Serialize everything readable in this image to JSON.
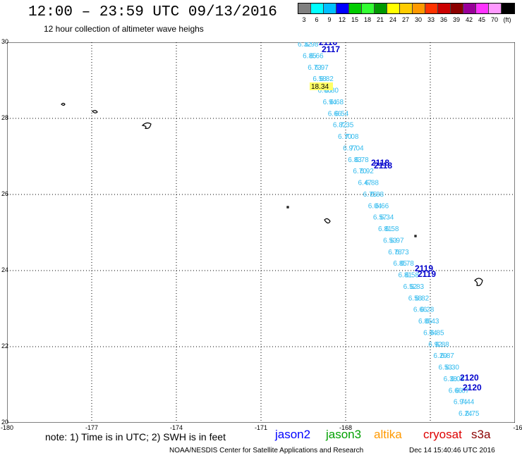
{
  "header": {
    "title": "12:00 – 23:59 UTC 09/13/2016",
    "subtitle": "12 hour collection of altimeter wave heighs"
  },
  "legend": {
    "colors": [
      "#808080",
      "#00ffff",
      "#00bfff",
      "#0000ff",
      "#00cc00",
      "#33ff33",
      "#009900",
      "#ffff00",
      "#ffcc00",
      "#ff9900",
      "#ff3300",
      "#cc0000",
      "#8b0000",
      "#990099",
      "#ff33ff",
      "#ff99ff",
      "#000000"
    ],
    "labels": [
      "3",
      "6",
      "9",
      "12",
      "15",
      "18",
      "21",
      "24",
      "27",
      "30",
      "33",
      "36",
      "39",
      "42",
      "45",
      "70",
      "(ft)"
    ]
  },
  "map": {
    "lat_ticks": [
      "30",
      "28",
      "26",
      "24",
      "22",
      "20"
    ],
    "lon_ticks": [
      "-180",
      "-177",
      "-174",
      "-171",
      "-168",
      "-16"
    ],
    "track_color": "#33bbee",
    "pass_labels": [
      "2116",
      "2117",
      "2118",
      "2118",
      "2119",
      "2119",
      "2120",
      "2120"
    ],
    "highlight_value": "18.34",
    "swh_values": [
      "6.32",
      "6.85",
      "6.73",
      "6.58",
      "6.66",
      "6.94",
      "6.66",
      "6.82",
      "6.70",
      "6.97",
      "6.83",
      "6.70",
      "6.47",
      "6.75",
      "6.04",
      "6.57",
      "6.81",
      "6.53",
      "6.78",
      "6.85",
      "6.81",
      "6.52",
      "6.58",
      "6.66",
      "6.85",
      "6.04",
      "6.92",
      "6.29",
      "6.53",
      "6.38",
      "6.66",
      "6.94",
      "6.24",
      "6.98",
      "6.66",
      "6.97",
      "6.82",
      "6.80",
      "6.68",
      "6.54",
      "7.35",
      "7.08",
      "7.04",
      "6.78",
      "6.92",
      "6.88",
      "6.88",
      "6.66",
      "6.34",
      "6.58",
      "6.97",
      "6.73",
      "6.78",
      "6.58",
      "6.83",
      "6.82",
      "6.28",
      "6.43",
      "6.85",
      "6.88",
      "6.87",
      "6.30",
      "6.08",
      "6.67",
      "7.44",
      "6.75"
    ]
  },
  "footer": {
    "note": "note: 1) Time is in UTC; 2) SWH is in feet",
    "satellites": [
      {
        "name": "jason2",
        "color": "#0000ff"
      },
      {
        "name": "jason3",
        "color": "#00a000"
      },
      {
        "name": "altika",
        "color": "#ff9900"
      },
      {
        "name": "cryosat",
        "color": "#dd0000"
      },
      {
        "name": "s3a",
        "color": "#8b0000"
      }
    ],
    "credit": "NOAA/NESDIS Center for Satellite Applications and Research",
    "generated": "Dec 14 15:40:46 UTC 2016"
  }
}
